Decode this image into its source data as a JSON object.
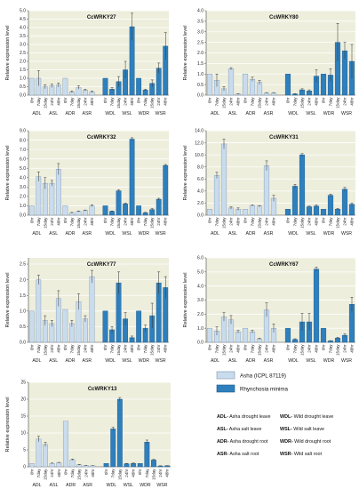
{
  "colors": {
    "asha": "#c9dcee",
    "asha_stroke": "#7f95ad",
    "rm": "#2e7fbd",
    "rm_stroke": "#1d5a8a",
    "plot_bg": "#eeeedd",
    "grid": "#ffffff"
  },
  "time_points": [
    "0hr",
    "7day",
    "15day",
    "24hr",
    "48hr"
  ],
  "group_labels": [
    "ADL",
    "ASL",
    "ADR",
    "ASR",
    "WDL",
    "WSL",
    "WDR",
    "WSR"
  ],
  "legend": {
    "asha": "Asha (ICPL 87119)",
    "rm": "Rhynchosia minima"
  },
  "abbreviations": [
    {
      "code": "ADL-",
      "text": " Asha drought leave"
    },
    {
      "code": "WDL-",
      "text": " Wild drought leave"
    },
    {
      "code": "ASL-",
      "text": " Asha salt leave"
    },
    {
      "code": "WSL-",
      "text": " Wild salt leave"
    },
    {
      "code": "ADR-",
      "text": " Asha drought root"
    },
    {
      "code": "WDR-",
      "text": " Wild drought root"
    },
    {
      "code": "ASR-",
      "text": " Asha salt root"
    },
    {
      "code": "WSR-",
      "text": " Wild salt root"
    }
  ],
  "chart_data": [
    {
      "type": "bar",
      "title": "CcWRKY27",
      "ylabel": "Relative expression level",
      "ylim": [
        0,
        5.0
      ],
      "ystep": 0.5,
      "ydecimals": 1,
      "series": [
        {
          "name": "Asha (ICPL 87119)",
          "values": [
            1.0,
            1.0,
            0.5,
            0.55,
            0.6,
            1.0,
            0.2,
            0.45,
            0.3,
            0.2
          ],
          "errors": [
            0,
            0.45,
            0.12,
            0.1,
            0.12,
            0,
            0.05,
            0.1,
            0.05,
            0.05
          ]
        },
        {
          "name": "Rhynchosia minima",
          "values": [
            1.0,
            0.35,
            0.8,
            1.5,
            4.05,
            1.0,
            0.3,
            0.7,
            1.6,
            2.9
          ],
          "errors": [
            0,
            0.1,
            0.3,
            0.5,
            0.8,
            0,
            0.05,
            0.2,
            0.3,
            0.8
          ]
        }
      ]
    },
    {
      "type": "bar",
      "title": "CcWRKY80",
      "ylabel": "Relative expression level",
      "ylim": [
        0,
        4.0
      ],
      "ystep": 0.5,
      "ydecimals": 1,
      "series": [
        {
          "name": "Asha (ICPL 87119)",
          "values": [
            1.0,
            0.7,
            0.3,
            1.25,
            0.05,
            1.0,
            0.75,
            0.6,
            0.1,
            0.1
          ],
          "errors": [
            0,
            0.3,
            0.1,
            0.05,
            0.02,
            0,
            0.1,
            0.1,
            0.02,
            0.02
          ]
        },
        {
          "name": "Rhynchosia minima",
          "values": [
            1.0,
            0.05,
            0.25,
            0.2,
            0.9,
            1.0,
            0.95,
            2.5,
            2.1,
            1.6
          ],
          "errors": [
            0,
            0.02,
            0.05,
            0.05,
            0.3,
            0,
            0.3,
            0.9,
            0.4,
            0.8
          ]
        }
      ]
    },
    {
      "type": "bar",
      "title": "CcWRKY32",
      "ylabel": "Relative expression level",
      "ylim": [
        0,
        9.0
      ],
      "ystep": 1.0,
      "ydecimals": 1,
      "series": [
        {
          "name": "Asha (ICPL 87119)",
          "values": [
            1.0,
            4.1,
            3.4,
            3.4,
            4.9,
            1.0,
            0.25,
            0.4,
            0.5,
            1.0
          ],
          "errors": [
            0,
            0.5,
            0.6,
            0.3,
            0.6,
            0,
            0.05,
            0.05,
            0.05,
            0.1
          ]
        },
        {
          "name": "Rhynchosia minima",
          "values": [
            1.0,
            0.4,
            2.6,
            1.2,
            8.1,
            1.0,
            0.25,
            0.6,
            1.7,
            5.3
          ],
          "errors": [
            0,
            0.05,
            0.1,
            0.1,
            0.15,
            0,
            0.05,
            0.1,
            0.1,
            0.1
          ]
        }
      ]
    },
    {
      "type": "bar",
      "title": "CcWRKY31",
      "ylabel": "Relative expression level",
      "ylim": [
        0,
        14.0
      ],
      "ystep": 2.0,
      "ydecimals": 1,
      "series": [
        {
          "name": "Asha (ICPL 87119)",
          "values": [
            1.0,
            6.6,
            11.8,
            1.2,
            1.0,
            1.0,
            1.6,
            1.5,
            8.2,
            2.8
          ],
          "errors": [
            0,
            0.5,
            0.8,
            0.2,
            0.2,
            0,
            0.1,
            0.1,
            0.8,
            0.5
          ]
        },
        {
          "name": "Rhynchosia minima",
          "values": [
            1.0,
            4.8,
            10.0,
            1.4,
            1.5,
            1.0,
            3.3,
            1.0,
            4.3,
            1.8
          ],
          "errors": [
            0,
            0.3,
            0.2,
            0.1,
            0.2,
            0,
            0.2,
            0.1,
            0.3,
            0.2
          ]
        }
      ]
    },
    {
      "type": "bar",
      "title": "CcWRKY77",
      "ylabel": "Relative expression level",
      "ylim": [
        0,
        2.7
      ],
      "ystep": 0.5,
      "ydecimals": 1,
      "series": [
        {
          "name": "Asha (ICPL 87119)",
          "values": [
            1.0,
            2.0,
            0.7,
            0.6,
            1.4,
            1.05,
            0.6,
            1.3,
            0.75,
            2.1
          ],
          "errors": [
            0,
            0.15,
            0.15,
            0.1,
            0.25,
            0,
            0.1,
            0.25,
            0.1,
            0.2
          ]
        },
        {
          "name": "Rhynchosia minima",
          "values": [
            1.0,
            0.4,
            1.9,
            0.75,
            0.15,
            1.0,
            0.45,
            0.85,
            1.9,
            1.75
          ],
          "errors": [
            0,
            0.1,
            0.35,
            0.2,
            0.05,
            0,
            0.1,
            0.4,
            0.35,
            0.35
          ]
        }
      ]
    },
    {
      "type": "bar",
      "title": "CcWRKY67",
      "ylabel": "Relative expression level",
      "ylim": [
        0,
        6.0
      ],
      "ystep": 1.0,
      "ydecimals": 1,
      "series": [
        {
          "name": "Asha (ICPL 87119)",
          "values": [
            1.0,
            0.8,
            1.8,
            1.6,
            0.75,
            1.0,
            0.75,
            0.25,
            2.3,
            1.0
          ],
          "errors": [
            0,
            0.3,
            0.3,
            0.3,
            0.1,
            0,
            0.1,
            0.05,
            0.5,
            0.3
          ]
        },
        {
          "name": "Rhynchosia minima",
          "values": [
            1.0,
            0.2,
            1.45,
            1.45,
            5.2,
            1.0,
            0.1,
            0.3,
            0.5,
            2.7
          ],
          "errors": [
            0,
            0.05,
            0.6,
            0.6,
            0.15,
            0,
            0.02,
            0.05,
            0.1,
            0.5
          ]
        }
      ]
    },
    {
      "type": "bar",
      "title": "CcWRKY13",
      "ylabel": "Relative expression level",
      "ylim": [
        0,
        25
      ],
      "ystep": 5,
      "ydecimals": 0,
      "series": [
        {
          "name": "Asha (ICPL 87119)",
          "values": [
            1.0,
            8.2,
            6.6,
            1.0,
            1.2,
            13.5,
            2.1,
            0.6,
            0.4,
            0.3
          ],
          "errors": [
            0,
            0.8,
            0.6,
            0.1,
            0.1,
            0,
            0.2,
            0.1,
            0.05,
            0.05
          ]
        },
        {
          "name": "Rhynchosia minima",
          "values": [
            1.0,
            11.2,
            20.0,
            0.9,
            1.0,
            1.0,
            7.3,
            2.0,
            0.25,
            0.3
          ],
          "errors": [
            0,
            0.5,
            0.5,
            0.1,
            0.1,
            0,
            0.6,
            0.2,
            0.05,
            0.05
          ]
        }
      ]
    }
  ]
}
